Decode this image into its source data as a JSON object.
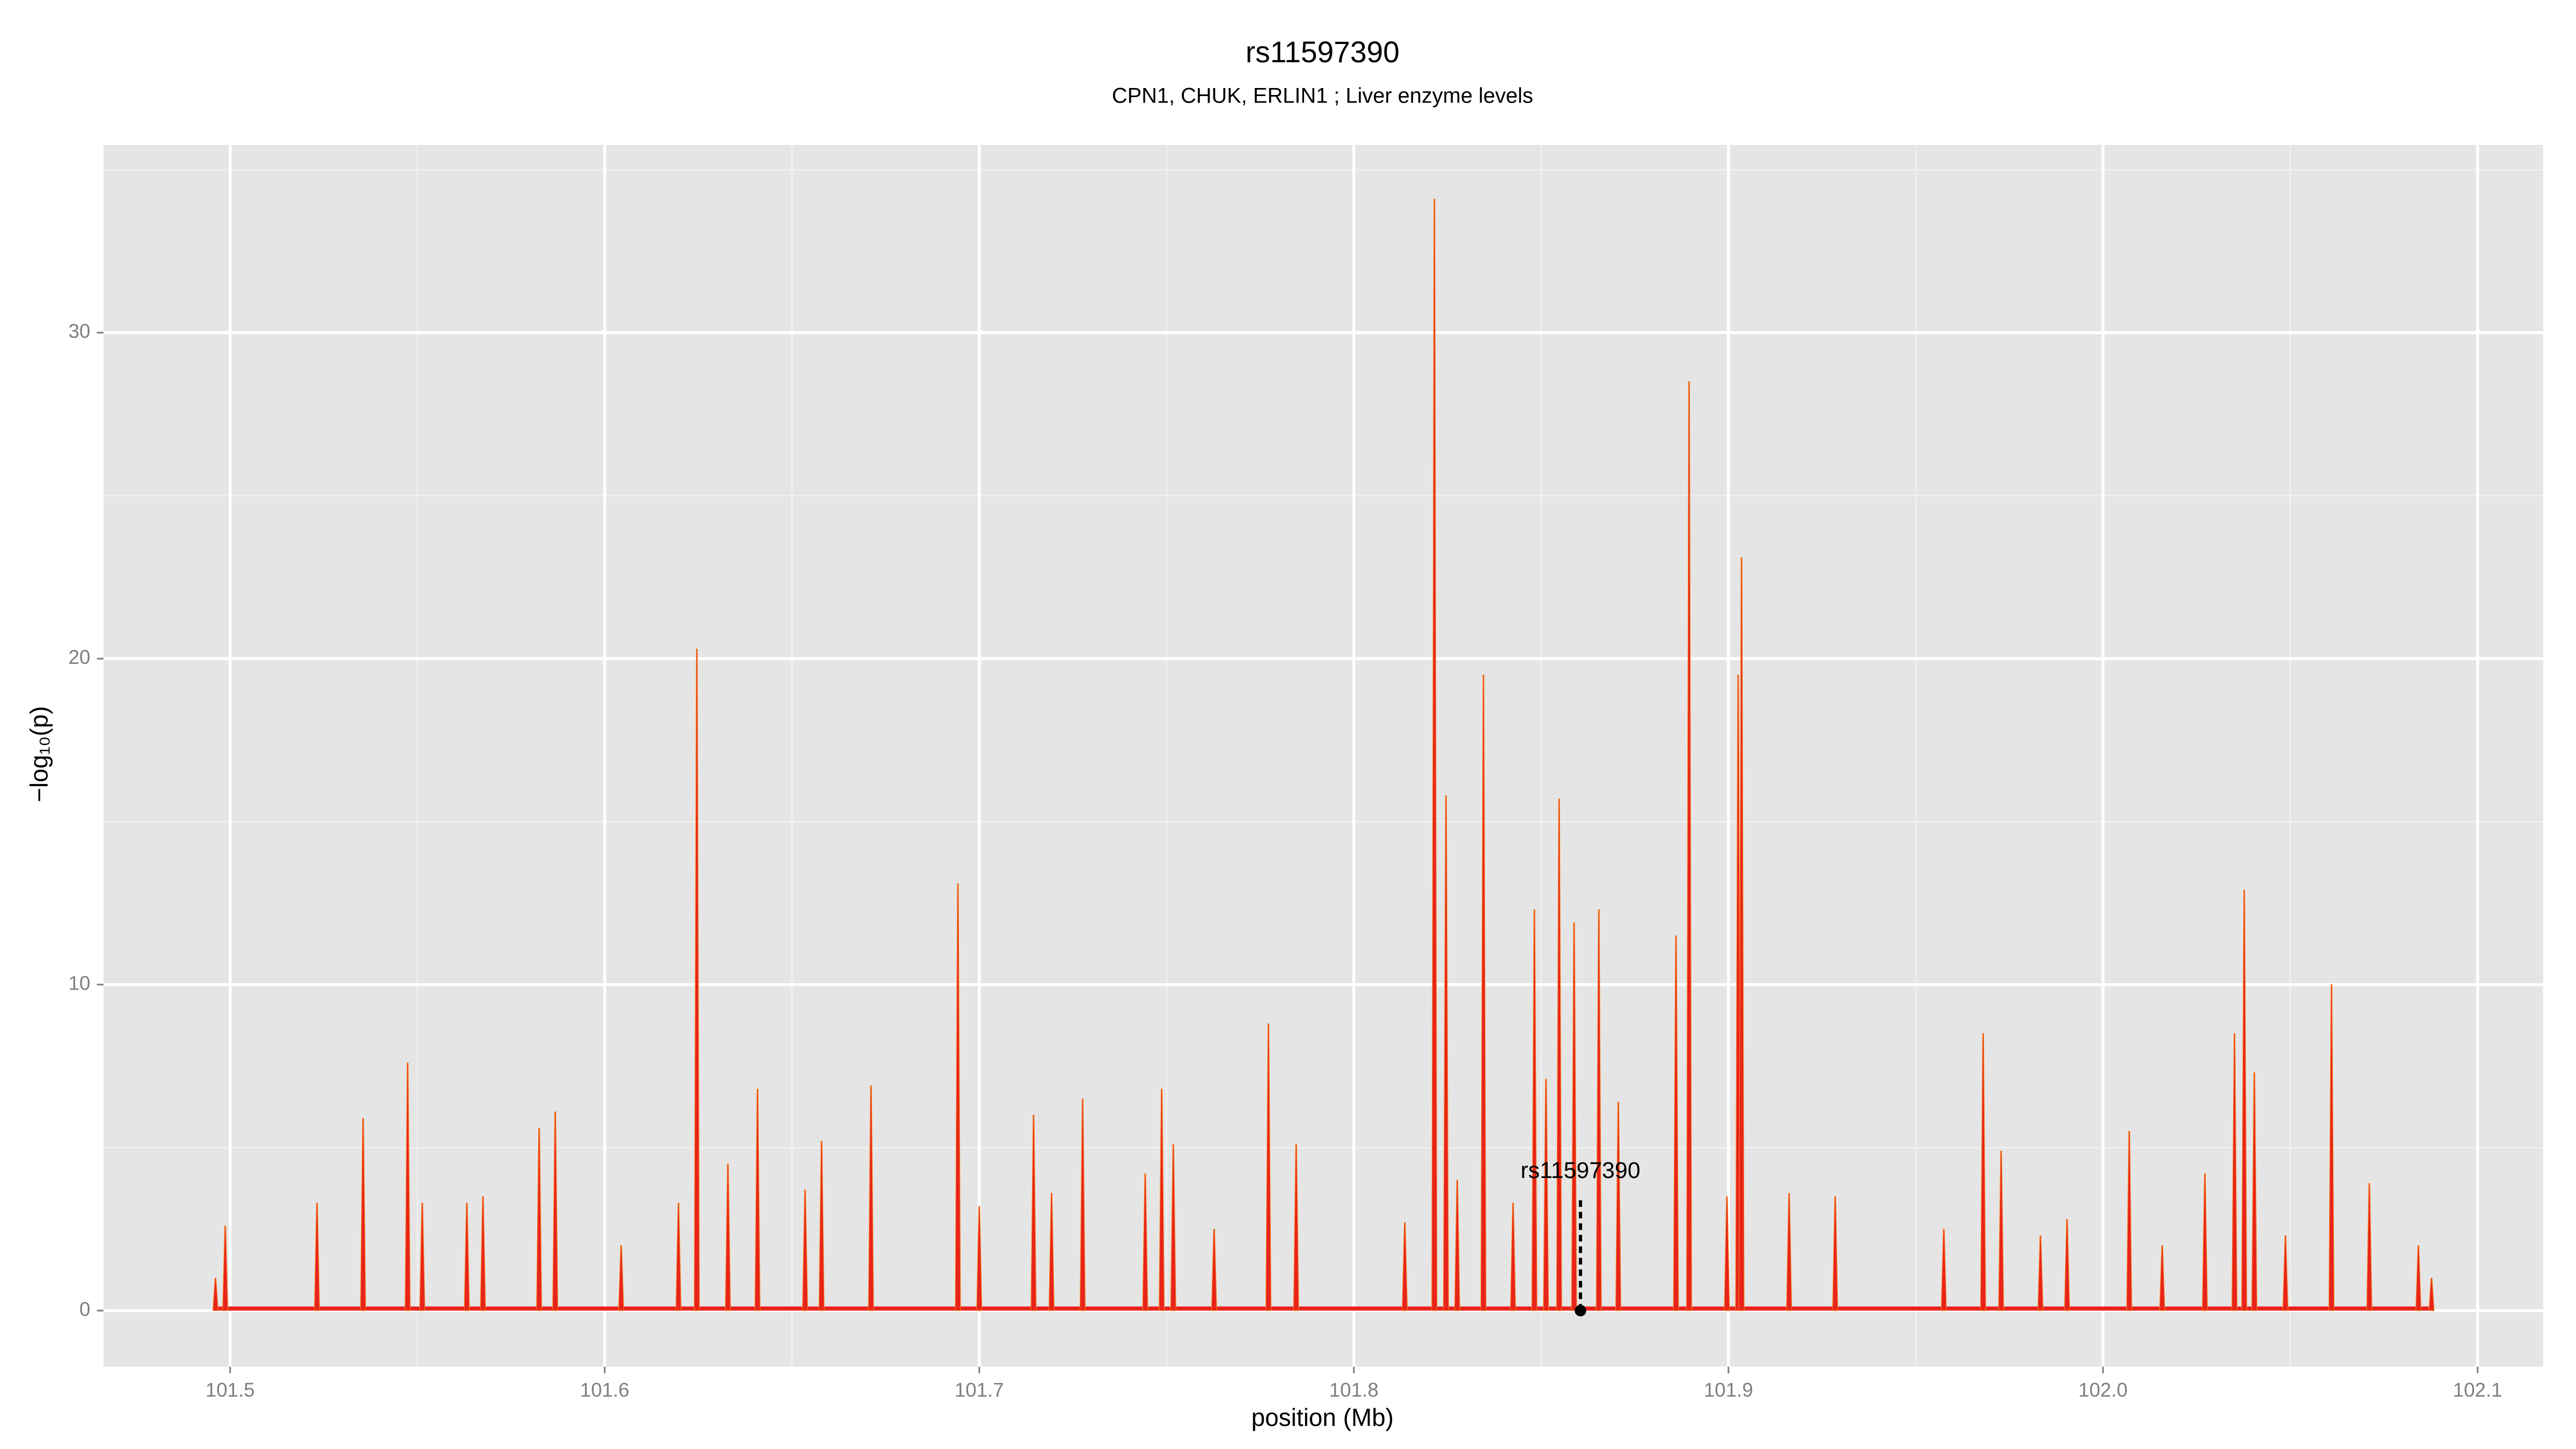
{
  "chart_data": {
    "type": "spike",
    "title": "rs11597390",
    "subtitle": "CPN1, CHUK, ERLIN1 ; Liver enzyme levels",
    "x_label": "position (Mb)",
    "y_label": "−log₁₀(p)",
    "xlim": [
      101.4662,
      102.1175
    ],
    "ylim": [
      -1.72,
      35.76
    ],
    "xticks": [
      {
        "value": 101.5,
        "label": "101.5"
      },
      {
        "value": 101.6,
        "label": "101.6"
      },
      {
        "value": 101.7,
        "label": "101.7"
      },
      {
        "value": 101.8,
        "label": "101.8"
      },
      {
        "value": 101.9,
        "label": "101.9"
      },
      {
        "value": 102.0,
        "label": "102.0"
      },
      {
        "value": 102.1,
        "label": "102.1"
      }
    ],
    "yticks": [
      0,
      10,
      20,
      30
    ],
    "grid": true,
    "minor_grid": true,
    "background": "#e5e5e5",
    "series": [
      {
        "color": "#e8231c",
        "edge_color": "#f57c1f",
        "x": [
          101.4961,
          101.4987,
          101.5232,
          101.5355,
          101.5474,
          101.5513,
          101.5632,
          101.5675,
          101.5825,
          101.5868,
          101.6044,
          101.6197,
          101.6246,
          101.6329,
          101.6408,
          101.6535,
          101.6579,
          101.6711,
          101.6943,
          101.7,
          101.7145,
          101.7193,
          101.7276,
          101.7443,
          101.7487,
          101.7518,
          101.7627,
          101.7772,
          101.7846,
          101.8136,
          101.8215,
          101.8246,
          101.8276,
          101.8346,
          101.8425,
          101.8482,
          101.8513,
          101.8548,
          101.8588,
          101.8654,
          101.8706,
          101.886,
          101.8895,
          101.8996,
          101.9026,
          101.9035,
          101.9162,
          101.9285,
          101.9575,
          101.968,
          101.9728,
          101.9833,
          101.9904,
          102.007,
          102.0158,
          102.0272,
          102.0351,
          102.0377,
          102.0404,
          102.0487,
          102.061,
          102.0711,
          102.0842,
          102.0877
        ],
        "values": [
          1.0,
          2.6,
          3.3,
          5.9,
          7.6,
          3.3,
          3.3,
          3.5,
          5.6,
          6.1,
          2.0,
          3.3,
          20.3,
          4.5,
          6.8,
          3.7,
          5.2,
          6.9,
          13.1,
          3.2,
          6.0,
          3.6,
          6.5,
          4.2,
          6.8,
          5.1,
          2.5,
          8.8,
          5.1,
          2.7,
          34.1,
          15.8,
          4.0,
          19.5,
          3.3,
          12.3,
          7.1,
          15.7,
          11.9,
          12.3,
          6.4,
          11.5,
          28.5,
          3.5,
          19.5,
          23.1,
          3.6,
          3.5,
          2.5,
          8.5,
          4.9,
          2.3,
          2.8,
          5.5,
          2.0,
          4.2,
          8.5,
          12.9,
          7.3,
          2.3,
          10.0,
          3.9,
          2.0,
          1.0
        ]
      }
    ],
    "annotation": {
      "label": "rs11597390",
      "x": 101.8605,
      "y": 0,
      "line_top": 3.5
    }
  }
}
